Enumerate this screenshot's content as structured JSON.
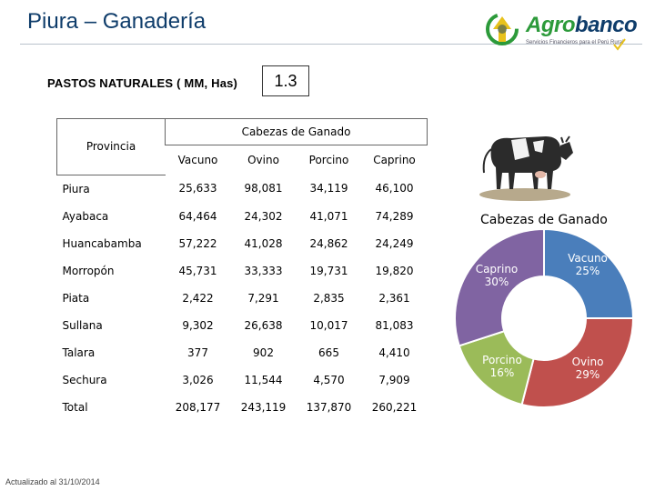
{
  "header": {
    "title": "Piura – Ganadería",
    "logo_text_green": "Agro",
    "logo_text_blue": "banco",
    "logo_tagline": "Servicios Financieros para el Perú Rural",
    "sub_label": "PASTOS NATURALES ( MM, Has)",
    "sub_value": "1.3"
  },
  "table": {
    "group_header": "Cabezas de Ganado",
    "province_header": "Provincia",
    "columns": [
      "Vacuno",
      "Ovino",
      "Porcino",
      "Caprino"
    ],
    "rows": [
      {
        "provincia": "Piura",
        "values": [
          "25,633",
          "98,081",
          "34,119",
          "46,100"
        ]
      },
      {
        "provincia": "Ayabaca",
        "values": [
          "64,464",
          "24,302",
          "41,071",
          "74,289"
        ]
      },
      {
        "provincia": "Huancabamba",
        "values": [
          "57,222",
          "41,028",
          "24,862",
          "24,249"
        ]
      },
      {
        "provincia": "Morropón",
        "values": [
          "45,731",
          "33,333",
          "19,731",
          "19,820"
        ]
      },
      {
        "provincia": "Piata",
        "values": [
          "2,422",
          "7,291",
          "2,835",
          "2,361"
        ]
      },
      {
        "provincia": "Sullana",
        "values": [
          "9,302",
          "26,638",
          "10,017",
          "81,083"
        ]
      },
      {
        "provincia": "Talara",
        "values": [
          "377",
          "902",
          "665",
          "4,410"
        ]
      },
      {
        "provincia": "Sechura",
        "values": [
          "3,026",
          "11,544",
          "4,570",
          "7,909"
        ]
      },
      {
        "provincia": "Total",
        "values": [
          "208,177",
          "243,119",
          "137,870",
          "260,221"
        ]
      }
    ]
  },
  "footnote": "Actualizado al 31/10/2014",
  "chart_data": {
    "type": "pie",
    "title": "Cabezas de Ganado",
    "donut": true,
    "slices": [
      {
        "label": "Vacuno",
        "percent_label": "25%",
        "value": 25,
        "color": "#4a7ebb"
      },
      {
        "label": "Ovino",
        "percent_label": "29%",
        "value": 29,
        "color": "#c0504d"
      },
      {
        "label": "Porcino",
        "percent_label": "16%",
        "value": 16,
        "color": "#9bbb59"
      },
      {
        "label": "Caprino",
        "percent_label": "30%",
        "value": 30,
        "color": "#8064a2"
      }
    ]
  }
}
